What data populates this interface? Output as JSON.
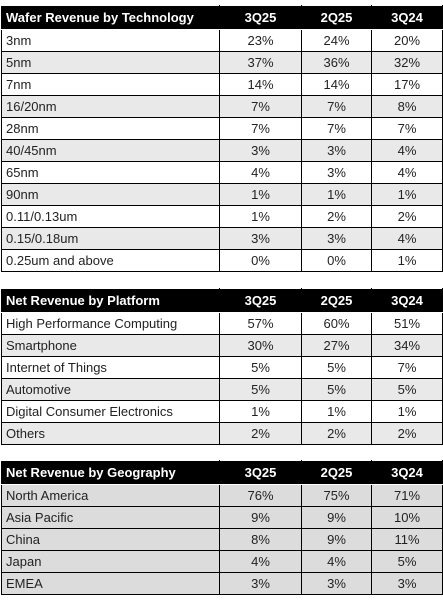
{
  "sections": [
    {
      "header": [
        "Wafer Revenue by Technology",
        "3Q25",
        "2Q25",
        "3Q24"
      ],
      "rows": [
        [
          "3nm",
          "23%",
          "24%",
          "20%"
        ],
        [
          "5nm",
          "37%",
          "36%",
          "32%"
        ],
        [
          "7nm",
          "14%",
          "14%",
          "17%"
        ],
        [
          "16/20nm",
          "7%",
          "7%",
          "8%"
        ],
        [
          "28nm",
          "7%",
          "7%",
          "7%"
        ],
        [
          "40/45nm",
          "3%",
          "3%",
          "4%"
        ],
        [
          "65nm",
          "4%",
          "3%",
          "4%"
        ],
        [
          "90nm",
          "1%",
          "1%",
          "1%"
        ],
        [
          "0.11/0.13um",
          "1%",
          "2%",
          "2%"
        ],
        [
          "0.15/0.18um",
          "3%",
          "3%",
          "4%"
        ],
        [
          "0.25um and above",
          "0%",
          "0%",
          "1%"
        ]
      ]
    },
    {
      "header": [
        "Net Revenue by Platform",
        "3Q25",
        "2Q25",
        "3Q24"
      ],
      "rows": [
        [
          "High Performance Computing",
          "57%",
          "60%",
          "51%"
        ],
        [
          "Smartphone",
          "30%",
          "27%",
          "34%"
        ],
        [
          "Internet of Things",
          "5%",
          "5%",
          "7%"
        ],
        [
          "Automotive",
          "5%",
          "5%",
          "5%"
        ],
        [
          "Digital Consumer Electronics",
          "1%",
          "1%",
          "1%"
        ],
        [
          "Others",
          "2%",
          "2%",
          "2%"
        ]
      ]
    },
    {
      "header": [
        "Net Revenue by Geography",
        "3Q25",
        "2Q25",
        "3Q24"
      ],
      "rows": [
        [
          "North America",
          "76%",
          "75%",
          "71%"
        ],
        [
          "Asia Pacific",
          "9%",
          "9%",
          "10%"
        ],
        [
          "China",
          "8%",
          "9%",
          "11%"
        ],
        [
          "Japan",
          "4%",
          "4%",
          "5%"
        ],
        [
          "EMEA",
          "3%",
          "3%",
          "3%"
        ]
      ]
    }
  ]
}
